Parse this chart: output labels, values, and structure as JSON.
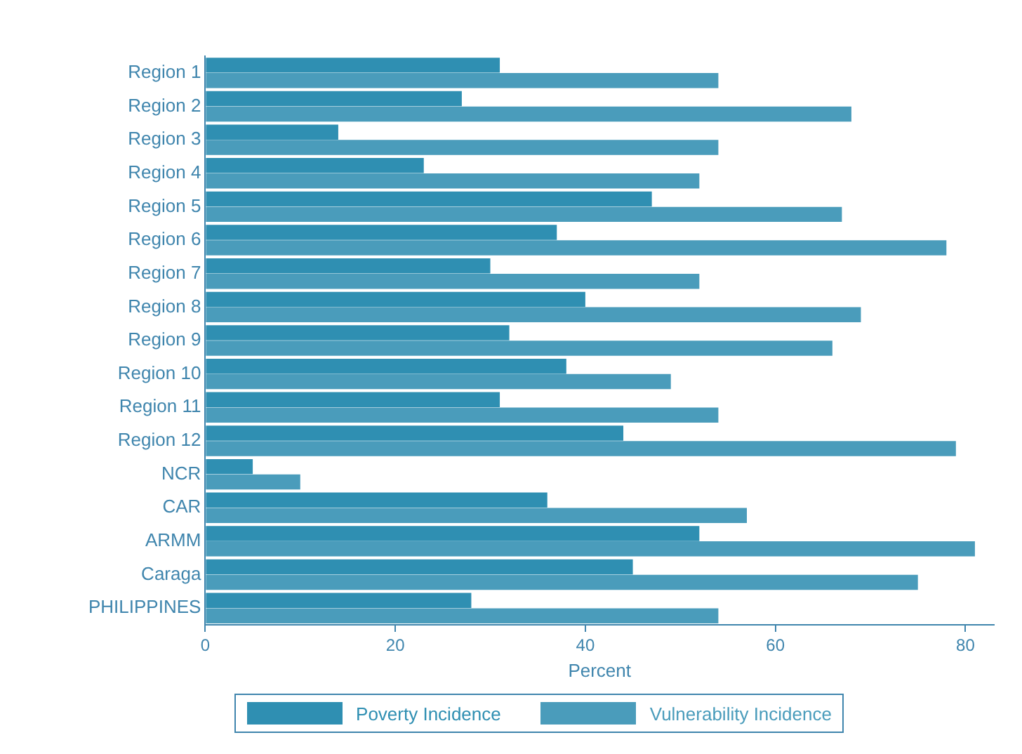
{
  "chart_data": {
    "type": "bar",
    "orientation": "horizontal",
    "xlabel": "Percent",
    "categories": [
      "Region 1",
      "Region 2",
      "Region 3",
      "Region 4",
      "Region 5",
      "Region 6",
      "Region 7",
      "Region 8",
      "Region 9",
      "Region 10",
      "Region 11",
      "Region 12",
      "NCR",
      "CAR",
      "ARMM",
      "Caraga",
      "PHILIPPINES"
    ],
    "series": [
      {
        "name": "Poverty Incidence",
        "color": "#2f8fb2",
        "values": [
          31,
          27,
          14,
          23,
          47,
          37,
          30,
          40,
          32,
          38,
          31,
          44,
          5,
          36,
          52,
          45,
          28
        ]
      },
      {
        "name": "Vulnerability Incidence",
        "color": "#4a9cbb",
        "values": [
          54,
          68,
          54,
          52,
          67,
          78,
          52,
          69,
          66,
          49,
          54,
          79,
          10,
          57,
          81,
          75,
          54
        ]
      }
    ],
    "xlim": [
      0,
      83
    ],
    "xticks": [
      0,
      20,
      40,
      60,
      80
    ],
    "grid": false,
    "legend": "bottom"
  }
}
